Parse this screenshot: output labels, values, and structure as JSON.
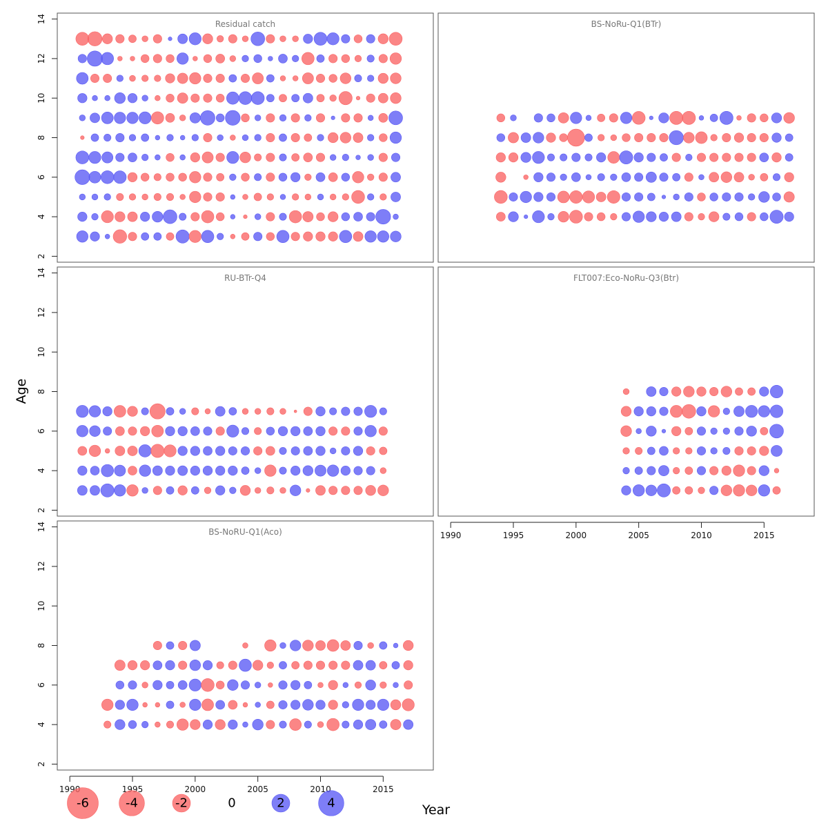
{
  "colors": {
    "positive": "#5a5af5",
    "negative": "#fa6464",
    "frame": "#555555"
  },
  "axis_labels": {
    "x": "Year",
    "y": "Age"
  },
  "chart_data": [
    {
      "type": "scatter",
      "subtype": "bubble",
      "title": "Residual catch",
      "xlim": [
        1989,
        2019
      ],
      "ylim": [
        1.7,
        14.3
      ],
      "x_ticks": [],
      "y_ticks": [
        2,
        4,
        6,
        8,
        10,
        12,
        14
      ],
      "x": [
        1991,
        1992,
        1993,
        1994,
        1995,
        1996,
        1997,
        1998,
        1999,
        2000,
        2001,
        2002,
        2003,
        2004,
        2005,
        2006,
        2007,
        2008,
        2009,
        2010,
        2011,
        2012,
        2013,
        2014,
        2015,
        2016
      ],
      "ages": [
        13,
        12,
        11,
        10,
        9,
        8,
        7,
        6,
        5,
        4,
        3
      ],
      "residuals": [
        [
          -2.3,
          -2.8,
          -1.4,
          -1.0,
          -0.8,
          -0.5,
          -1.0,
          0.2,
          1.3,
          2.0,
          -1.4,
          -0.6,
          -1.0,
          -0.5,
          2.6,
          -1.0,
          -0.5,
          -0.5,
          1.2,
          2.3,
          2.0,
          1.0,
          -0.9,
          1.0,
          -1.4,
          -2.3
        ],
        [
          1.0,
          3.2,
          2.1,
          -0.3,
          -0.3,
          -0.9,
          -1.0,
          -0.9,
          1.8,
          -0.3,
          -0.9,
          -1.1,
          -0.5,
          0.6,
          0.9,
          0.3,
          1.1,
          0.6,
          -2.1,
          0.8,
          -1.0,
          -0.9,
          -0.6,
          0.7,
          -1.0,
          -1.8
        ],
        [
          1.9,
          -1.0,
          -1.0,
          0.6,
          -0.5,
          -0.6,
          -0.6,
          -1.2,
          -1.5,
          -1.8,
          -1.0,
          -1.0,
          0.8,
          -1.0,
          -1.7,
          0.8,
          -0.4,
          -0.4,
          -1.7,
          -1.0,
          -0.9,
          -1.6,
          0.7,
          0.6,
          -1.4,
          -1.6
        ],
        [
          1.2,
          0.4,
          0.4,
          1.6,
          1.2,
          0.5,
          -0.4,
          -0.9,
          -1.5,
          -1.0,
          -1.0,
          -0.9,
          2.1,
          2.3,
          2.3,
          0.8,
          -0.8,
          0.8,
          1.3,
          -0.8,
          -0.6,
          -2.4,
          -0.2,
          -1.0,
          -1.3,
          -1.6
        ],
        [
          0.5,
          1.3,
          1.9,
          1.8,
          1.8,
          2.0,
          -2.1,
          -1.1,
          -0.5,
          1.5,
          2.9,
          0.9,
          3.0,
          -0.9,
          0.5,
          -1.0,
          0.6,
          -1.0,
          0.6,
          -1.0,
          0.2,
          -1.0,
          -1.0,
          0.4,
          -1.1,
          2.6
        ],
        [
          -0.2,
          0.8,
          0.7,
          1.0,
          0.6,
          0.8,
          0.3,
          0.6,
          0.3,
          0.6,
          -1.0,
          0.5,
          -0.4,
          0.5,
          0.6,
          -1.0,
          0.8,
          -1.0,
          -0.8,
          0.6,
          -1.4,
          -1.6,
          -1.3,
          0.6,
          -0.9,
          1.8
        ],
        [
          2.3,
          2.0,
          1.7,
          1.0,
          1.1,
          0.6,
          0.4,
          -0.9,
          0.4,
          -1.2,
          -1.7,
          -1.0,
          2.0,
          -1.6,
          -0.7,
          -1.0,
          0.7,
          -0.8,
          -1.1,
          -1.0,
          0.5,
          0.6,
          0.3,
          0.5,
          -1.0,
          1.0
        ],
        [
          3.0,
          1.9,
          2.3,
          2.2,
          -1.2,
          -0.9,
          -0.7,
          -0.9,
          -0.9,
          -1.8,
          -1.0,
          -0.8,
          0.6,
          -0.9,
          0.7,
          -1.0,
          0.9,
          1.2,
          -0.6,
          1.1,
          -1.1,
          0.9,
          -1.8,
          -0.6,
          -1.0,
          1.3
        ],
        [
          0.5,
          0.5,
          0.6,
          -0.7,
          -0.6,
          -0.5,
          -0.7,
          -0.7,
          -0.4,
          -1.8,
          -1.0,
          -1.0,
          0.3,
          -0.4,
          -0.8,
          -0.6,
          0.4,
          -0.6,
          -0.5,
          0.5,
          -0.5,
          -0.6,
          -2.3,
          0.6,
          -0.6,
          1.3
        ],
        [
          1.2,
          0.6,
          -2.0,
          -1.4,
          -1.3,
          1.2,
          1.6,
          2.6,
          0.7,
          -1.0,
          -2.1,
          -0.9,
          0.3,
          -0.2,
          0.5,
          -1.0,
          0.7,
          -2.1,
          -1.5,
          -0.9,
          -1.4,
          0.9,
          1.1,
          1.0,
          3.0,
          0.4
        ],
        [
          1.8,
          1.2,
          0.3,
          -2.5,
          -1.0,
          0.8,
          0.8,
          -0.8,
          2.4,
          -2.0,
          2.1,
          0.6,
          -0.3,
          -0.8,
          1.0,
          -0.9,
          2.1,
          -1.0,
          -1.2,
          -1.2,
          -1.2,
          2.1,
          -1.3,
          1.8,
          1.8,
          1.6
        ]
      ]
    },
    {
      "type": "scatter",
      "subtype": "bubble",
      "title": "BS-NoRu-Q1(BTr)",
      "xlim": [
        1989,
        2019
      ],
      "ylim": [
        1.7,
        14.3
      ],
      "x_ticks": [],
      "y_ticks": [],
      "x": [
        1994,
        1995,
        1996,
        1997,
        1998,
        1999,
        2000,
        2001,
        2002,
        2003,
        2004,
        2005,
        2006,
        2007,
        2008,
        2009,
        2010,
        2011,
        2012,
        2013,
        2014,
        2015,
        2016,
        2017
      ],
      "ages": [
        9,
        8,
        7,
        6,
        5,
        4
      ],
      "residuals": [
        [
          -0.9,
          0.5,
          0,
          1.0,
          0.9,
          -1.5,
          1.8,
          0.4,
          -0.8,
          -1.0,
          1.8,
          -2.3,
          0.2,
          1.4,
          -2.4,
          -2.4,
          0.3,
          0.8,
          2.4,
          -0.3,
          -1.0,
          -0.9,
          1.4,
          -1.6
        ],
        [
          0.9,
          -1.5,
          1.3,
          1.6,
          -1.2,
          -0.9,
          -4.0,
          0.8,
          -0.6,
          -0.5,
          -0.9,
          -1.0,
          -1.0,
          -1.0,
          2.8,
          -1.6,
          -1.9,
          -0.6,
          -1.0,
          -1.2,
          -1.0,
          -1.0,
          1.2,
          0.8
        ],
        [
          -1.2,
          -1.2,
          1.4,
          2.0,
          0.7,
          0.7,
          1.0,
          0.7,
          1.2,
          -1.9,
          2.4,
          1.2,
          1.0,
          0.8,
          -1.0,
          0.6,
          -1.0,
          -1.0,
          -1.0,
          -1.0,
          -1.0,
          1.1,
          -1.2,
          0.8
        ],
        [
          -1.4,
          0,
          -0.3,
          1.2,
          1.0,
          0.6,
          1.1,
          0.4,
          0.7,
          0.6,
          1.1,
          1.0,
          1.5,
          1.0,
          0.8,
          -1.0,
          0.4,
          -1.3,
          -1.6,
          -1.3,
          -0.5,
          -0.8,
          0.7,
          -1.2
        ],
        [
          -2.3,
          1.0,
          1.8,
          1.2,
          1.0,
          -1.9,
          -2.2,
          -2.0,
          -1.3,
          -2.2,
          1.0,
          1.0,
          0.8,
          0.2,
          0.5,
          1.0,
          -0.9,
          0.9,
          1.0,
          1.0,
          0.6,
          1.6,
          0.9,
          -1.5
        ],
        [
          -1.1,
          1.4,
          0.2,
          2.0,
          0.6,
          -1.6,
          -2.3,
          -1.0,
          -0.9,
          -0.6,
          1.0,
          1.8,
          1.4,
          1.2,
          1.3,
          -1.0,
          -0.6,
          -1.4,
          0.7,
          0.9,
          -1.0,
          0.9,
          2.4,
          1.2
        ]
      ]
    },
    {
      "type": "scatter",
      "subtype": "bubble",
      "title": "RU-BTr-Q4",
      "xlim": [
        1989,
        2019
      ],
      "ylim": [
        1.7,
        14.3
      ],
      "x_ticks": [],
      "y_ticks": [
        2,
        4,
        6,
        8,
        10,
        12,
        14
      ],
      "x": [
        1991,
        1992,
        1993,
        1994,
        1995,
        1996,
        1997,
        1998,
        1999,
        2000,
        2001,
        2002,
        2003,
        2004,
        2005,
        2006,
        2007,
        2008,
        2009,
        2010,
        2011,
        2012,
        2013,
        2014,
        2015
      ],
      "ages": [
        7,
        6,
        5,
        4,
        3
      ],
      "residuals": [
        [
          2.0,
          1.8,
          1.2,
          -1.9,
          -1.4,
          0.7,
          -3.2,
          0.8,
          0.5,
          -0.7,
          -0.4,
          1.3,
          0.8,
          -0.5,
          -0.5,
          -0.7,
          -0.5,
          -0.1,
          -1.0,
          1.2,
          0.7,
          1.0,
          1.0,
          2.0,
          0.7
        ],
        [
          1.8,
          1.6,
          1.0,
          -1.1,
          -1.0,
          -1.2,
          -1.9,
          1.2,
          1.2,
          1.1,
          1.0,
          -1.0,
          2.0,
          0.7,
          -0.7,
          0.9,
          1.2,
          1.2,
          1.1,
          1.2,
          -1.0,
          -1.0,
          1.0,
          1.8,
          -1.0
        ],
        [
          -1.1,
          -1.8,
          -0.3,
          -1.3,
          -1.3,
          2.1,
          -2.4,
          -2.0,
          1.2,
          1.2,
          1.1,
          1.2,
          1.0,
          1.0,
          -1.0,
          -1.1,
          0.7,
          1.0,
          1.1,
          1.2,
          0.5,
          1.0,
          1.2,
          -1.0,
          -0.8
        ],
        [
          1.2,
          1.1,
          2.1,
          1.7,
          -1.1,
          1.8,
          1.3,
          1.2,
          1.3,
          1.2,
          1.2,
          1.2,
          1.2,
          0.8,
          0.5,
          -1.8,
          0.7,
          1.2,
          1.4,
          1.7,
          1.8,
          1.2,
          1.0,
          1.0,
          -0.5
        ],
        [
          1.3,
          1.3,
          2.4,
          1.8,
          -1.8,
          0.5,
          -1.0,
          0.8,
          -1.2,
          0.8,
          -0.6,
          1.2,
          0.6,
          -1.4,
          -0.5,
          -0.7,
          -0.5,
          1.6,
          -0.2,
          -1.3,
          -1.0,
          -1.0,
          -1.0,
          -1.4,
          -1.6
        ]
      ]
    },
    {
      "type": "scatter",
      "subtype": "bubble",
      "title": "FLT007:Eco-NoRu-Q3(Btr)",
      "xlim": [
        1989,
        2019
      ],
      "ylim": [
        1.7,
        14.3
      ],
      "x_ticks": [
        1990,
        1995,
        2000,
        2005,
        2010,
        2015
      ],
      "y_ticks": [],
      "x": [
        2004,
        2005,
        2006,
        2007,
        2008,
        2009,
        2010,
        2011,
        2012,
        2013,
        2014,
        2015,
        2016,
        2017
      ],
      "ages": [
        8,
        7,
        6,
        5,
        4,
        3
      ],
      "residuals": [
        [
          -0.5,
          0,
          1.3,
          1.0,
          -1.2,
          -1.6,
          -1.2,
          -1.0,
          -1.6,
          -0.8,
          -0.8,
          1.2,
          2.2,
          0
        ],
        [
          -1.4,
          1.2,
          1.2,
          1.0,
          -2.0,
          -2.6,
          1.2,
          -1.8,
          0.6,
          1.5,
          2.0,
          1.8,
          2.2,
          0
        ],
        [
          -1.6,
          0.4,
          1.4,
          0.2,
          -1.2,
          -0.8,
          1.0,
          0.6,
          0.6,
          1.0,
          1.4,
          -0.8,
          2.6,
          0
        ],
        [
          -0.6,
          -0.7,
          0.8,
          1.1,
          -0.6,
          -0.6,
          1.0,
          0.6,
          0.7,
          -1.0,
          -1.0,
          -1.2,
          1.7,
          0
        ],
        [
          0.6,
          0.8,
          1.0,
          1.5,
          -0.6,
          -0.8,
          1.0,
          -1.0,
          -1.2,
          -1.8,
          -1.0,
          1.4,
          -0.3,
          0
        ],
        [
          1.2,
          1.8,
          1.6,
          2.4,
          -0.8,
          -0.8,
          -0.6,
          1.0,
          -1.6,
          -1.8,
          -1.6,
          1.8,
          -0.8,
          0
        ]
      ]
    },
    {
      "type": "scatter",
      "subtype": "bubble",
      "title": "BS-NoRU-Q1(Aco)",
      "xlim": [
        1989,
        2019
      ],
      "ylim": [
        1.7,
        14.3
      ],
      "x_ticks": [
        1990,
        1995,
        2000,
        2005,
        2010,
        2015
      ],
      "y_ticks": [
        2,
        4,
        6,
        8,
        10,
        12,
        14
      ],
      "x": [
        1993,
        1994,
        1995,
        1996,
        1997,
        1998,
        1999,
        2000,
        2001,
        2002,
        2003,
        2004,
        2005,
        2006,
        2007,
        2008,
        2009,
        2010,
        2011,
        2012,
        2013,
        2014,
        2015,
        2016,
        2017
      ],
      "ages": [
        8,
        7,
        6,
        5,
        4
      ],
      "residuals": [
        [
          0,
          0,
          0,
          0,
          -1.0,
          0.8,
          -1.0,
          1.5,
          0,
          0,
          0,
          -0.4,
          0,
          -1.8,
          0.5,
          1.6,
          -1.6,
          -1.3,
          -1.9,
          -1.3,
          1.0,
          -0.5,
          0.8,
          0.3,
          -1.4
        ],
        [
          0,
          -1.5,
          -1.2,
          -1.2,
          1.1,
          1.2,
          -1.0,
          1.6,
          1.2,
          -0.7,
          -1.0,
          2.1,
          -1.4,
          -0.6,
          0.8,
          -0.8,
          -1.0,
          -1.0,
          -1.0,
          -1.0,
          1.3,
          1.3,
          -0.8,
          0.8,
          -1.2
        ],
        [
          0,
          0.9,
          1.0,
          -0.5,
          1.2,
          0.8,
          1.1,
          2.0,
          -2.3,
          -0.9,
          1.6,
          1.0,
          0.5,
          -0.3,
          1.0,
          1.2,
          0.8,
          -0.4,
          -1.2,
          0.4,
          -0.6,
          1.4,
          -0.6,
          0.4,
          -1.0
        ],
        [
          -1.8,
          1.2,
          1.8,
          -0.3,
          -0.3,
          0.8,
          -0.4,
          1.8,
          -1.9,
          1.1,
          -1.1,
          -0.3,
          0.4,
          -0.8,
          1.0,
          1.2,
          1.6,
          1.2,
          -1.2,
          0.6,
          1.8,
          1.2,
          1.8,
          -1.4,
          -2.0
        ],
        [
          -0.7,
          1.4,
          0.9,
          0.6,
          -0.4,
          -0.7,
          -1.8,
          -1.4,
          1.2,
          -1.4,
          1.2,
          0.4,
          1.6,
          -1.0,
          0.7,
          -1.9,
          0.7,
          -0.5,
          -2.1,
          0.7,
          1.2,
          1.5,
          0.8,
          -1.5,
          1.3
        ]
      ]
    }
  ],
  "legend": {
    "values": [
      -6,
      -4,
      -2,
      0,
      2,
      4
    ],
    "labels": [
      "-6",
      "-4",
      "-2",
      "0",
      "2",
      "4"
    ]
  }
}
